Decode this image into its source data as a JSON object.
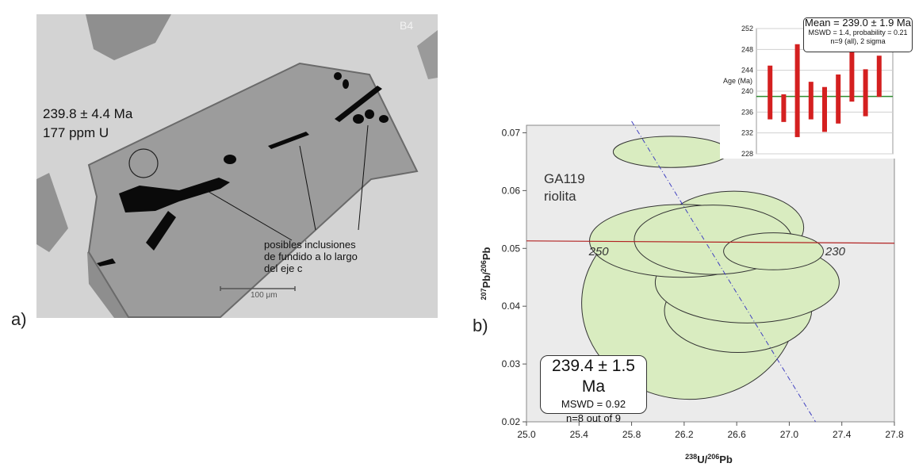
{
  "panel_a": {
    "label": "a)",
    "grain_code": "B4",
    "age": "239.8 ± 4.4 Ma",
    "uranium": "177 ppm U",
    "annotation_lines": [
      "posibles inclusiones",
      "de fundido a lo largo",
      "del eje c"
    ],
    "scale_bar": "100 μm"
  },
  "panel_b": {
    "label": "b)",
    "sample_name": "GA119",
    "rock_type": "riolita",
    "result": {
      "age": "239.4 ± 1.5 Ma",
      "mswd": "MSWD = 0.92",
      "n": "n=8 out of 9"
    },
    "concordia_labels": [
      "250",
      "230"
    ],
    "colors": {
      "ellipse_fill": "#d9ecc0",
      "ellipse_stroke": "#333333",
      "concordia": "#b22222",
      "plot_bg": "#ebebeb",
      "dashed_line": "#4040c0"
    }
  },
  "chart_data": [
    {
      "type": "scatter",
      "title": "",
      "xlabel": "238U/206Pb",
      "ylabel": "207Pb/206Pb",
      "xlim": [
        25.0,
        27.8
      ],
      "ylim": [
        0.02,
        0.072
      ],
      "xticks": [
        "25.0",
        "25.4",
        "25.8",
        "26.2",
        "26.6",
        "27.0",
        "27.4",
        "27.8"
      ],
      "yticks": [
        "0.02",
        "0.03",
        "0.04",
        "0.05",
        "0.06",
        "0.07"
      ],
      "ellipses": [
        {
          "cx": 26.1,
          "cy": 0.0667,
          "rx": 0.44,
          "ry": 0.0027
        },
        {
          "cx": 26.58,
          "cy": 0.0536,
          "rx": 0.53,
          "ry": 0.0063
        },
        {
          "cx": 26.18,
          "cy": 0.0513,
          "rx": 0.7,
          "ry": 0.0063
        },
        {
          "cx": 26.42,
          "cy": 0.0515,
          "rx": 0.6,
          "ry": 0.006
        },
        {
          "cx": 26.68,
          "cy": 0.0441,
          "rx": 0.7,
          "ry": 0.007
        },
        {
          "cx": 26.24,
          "cy": 0.0405,
          "rx": 0.82,
          "ry": 0.0166
        },
        {
          "cx": 26.61,
          "cy": 0.0392,
          "rx": 0.56,
          "ry": 0.0072
        },
        {
          "cx": 26.88,
          "cy": 0.0495,
          "rx": 0.38,
          "ry": 0.0032
        }
      ],
      "concordia": {
        "label_points": [
          {
            "x": 25.55,
            "label": "250"
          },
          {
            "x": 27.35,
            "label": "230"
          }
        ],
        "y": 0.0513
      },
      "dashed_line": {
        "x1": 25.8,
        "y1": 0.072,
        "x2": 27.2,
        "y2": 0.02
      }
    },
    {
      "type": "bar",
      "title": "",
      "ylabel": "Age (Ma)",
      "ylim": [
        228,
        252
      ],
      "yticks": [
        "228",
        "232",
        "236",
        "240",
        "244",
        "248",
        "252"
      ],
      "mean_line": 239.0,
      "mean_text": "Mean = 239.0 ± 1.9 Ma",
      "mswd_text": "MSWD = 1.4, probability = 0.21",
      "n_text": "n=9 (all), 2 sigma",
      "error_bars": [
        {
          "low": 234.6,
          "high": 244.9
        },
        {
          "low": 234.1,
          "high": 239.4
        },
        {
          "low": 231.2,
          "high": 249.0
        },
        {
          "low": 234.6,
          "high": 241.8
        },
        {
          "low": 232.2,
          "high": 240.8
        },
        {
          "low": 233.8,
          "high": 243.2
        },
        {
          "low": 238.0,
          "high": 248.4
        },
        {
          "low": 235.2,
          "high": 244.2
        },
        {
          "low": 238.9,
          "high": 246.8
        }
      ],
      "colors": {
        "bar": "#d42020",
        "mean": "#2e8b2e"
      }
    }
  ]
}
